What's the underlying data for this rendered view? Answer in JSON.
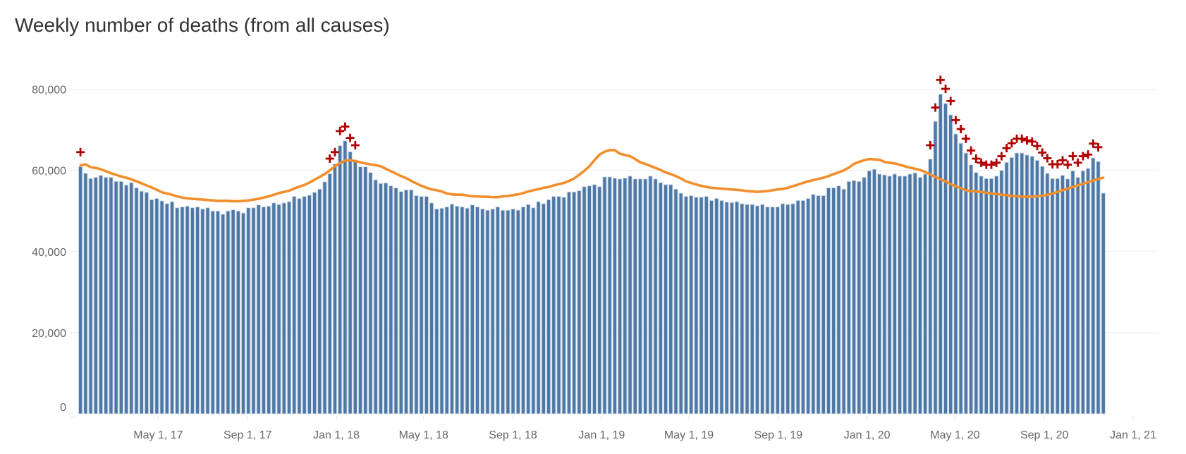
{
  "chart_data": {
    "type": "bar",
    "title": "Weekly number of deaths (from all causes)",
    "xlabel": "",
    "ylabel": "",
    "ylim": [
      0,
      85000
    ],
    "grid": "horizontal",
    "y_ticks": [
      {
        "value": 0,
        "label": "0"
      },
      {
        "value": 20000,
        "label": "20,000"
      },
      {
        "value": 40000,
        "label": "40,000"
      },
      {
        "value": 60000,
        "label": "60,000"
      },
      {
        "value": 80000,
        "label": "80,000"
      }
    ],
    "x_ticks": [
      {
        "date": "2017-05-01",
        "label": "May 1, 17"
      },
      {
        "date": "2017-09-01",
        "label": "Sep 1, 17"
      },
      {
        "date": "2018-01-01",
        "label": "Jan 1, 18"
      },
      {
        "date": "2018-05-01",
        "label": "May 1, 18"
      },
      {
        "date": "2018-09-01",
        "label": "Sep 1, 18"
      },
      {
        "date": "2019-01-01",
        "label": "Jan 1, 19"
      },
      {
        "date": "2019-05-01",
        "label": "May 1, 19"
      },
      {
        "date": "2019-09-01",
        "label": "Sep 1, 19"
      },
      {
        "date": "2020-01-01",
        "label": "Jan 1, 20"
      },
      {
        "date": "2020-05-01",
        "label": "May 1, 20"
      },
      {
        "date": "2020-09-01",
        "label": "Sep 1, 20"
      },
      {
        "date": "2021-01-01",
        "label": "Jan 1, 21"
      }
    ],
    "colors": {
      "bars": "#4e79a7",
      "bar_outline": "#d6e0ec",
      "expected_line": "#f28e2b",
      "markers": "#b00000",
      "grid": "#eeeeee"
    },
    "weeks": [
      "2017-01-14",
      "2017-01-21",
      "2017-01-28",
      "2017-02-04",
      "2017-02-11",
      "2017-02-18",
      "2017-02-25",
      "2017-03-04",
      "2017-03-11",
      "2017-03-18",
      "2017-03-25",
      "2017-04-01",
      "2017-04-08",
      "2017-04-15",
      "2017-04-22",
      "2017-04-29",
      "2017-05-06",
      "2017-05-13",
      "2017-05-20",
      "2017-05-27",
      "2017-06-03",
      "2017-06-10",
      "2017-06-17",
      "2017-06-24",
      "2017-07-01",
      "2017-07-08",
      "2017-07-15",
      "2017-07-22",
      "2017-07-29",
      "2017-08-05",
      "2017-08-12",
      "2017-08-19",
      "2017-08-26",
      "2017-09-02",
      "2017-09-09",
      "2017-09-16",
      "2017-09-23",
      "2017-09-30",
      "2017-10-07",
      "2017-10-14",
      "2017-10-21",
      "2017-10-28",
      "2017-11-04",
      "2017-11-11",
      "2017-11-18",
      "2017-11-25",
      "2017-12-02",
      "2017-12-09",
      "2017-12-16",
      "2017-12-23",
      "2017-12-30",
      "2018-01-06",
      "2018-01-13",
      "2018-01-20",
      "2018-01-27",
      "2018-02-03",
      "2018-02-10",
      "2018-02-17",
      "2018-02-24",
      "2018-03-03",
      "2018-03-10",
      "2018-03-17",
      "2018-03-24",
      "2018-03-31",
      "2018-04-07",
      "2018-04-14",
      "2018-04-21",
      "2018-04-28",
      "2018-05-05",
      "2018-05-12",
      "2018-05-19",
      "2018-05-26",
      "2018-06-02",
      "2018-06-09",
      "2018-06-16",
      "2018-06-23",
      "2018-06-30",
      "2018-07-07",
      "2018-07-14",
      "2018-07-21",
      "2018-07-28",
      "2018-08-04",
      "2018-08-11",
      "2018-08-18",
      "2018-08-25",
      "2018-09-01",
      "2018-09-08",
      "2018-09-15",
      "2018-09-22",
      "2018-09-29",
      "2018-10-06",
      "2018-10-13",
      "2018-10-20",
      "2018-10-27",
      "2018-11-03",
      "2018-11-10",
      "2018-11-17",
      "2018-11-24",
      "2018-12-01",
      "2018-12-08",
      "2018-12-15",
      "2018-12-22",
      "2018-12-29",
      "2019-01-05",
      "2019-01-12",
      "2019-01-19",
      "2019-01-26",
      "2019-02-02",
      "2019-02-09",
      "2019-02-16",
      "2019-02-23",
      "2019-03-02",
      "2019-03-09",
      "2019-03-16",
      "2019-03-23",
      "2019-03-30",
      "2019-04-06",
      "2019-04-13",
      "2019-04-20",
      "2019-04-27",
      "2019-05-04",
      "2019-05-11",
      "2019-05-18",
      "2019-05-25",
      "2019-06-01",
      "2019-06-08",
      "2019-06-15",
      "2019-06-22",
      "2019-06-29",
      "2019-07-06",
      "2019-07-13",
      "2019-07-20",
      "2019-07-27",
      "2019-08-03",
      "2019-08-10",
      "2019-08-17",
      "2019-08-24",
      "2019-08-31",
      "2019-09-07",
      "2019-09-14",
      "2019-09-21",
      "2019-09-28",
      "2019-10-05",
      "2019-10-12",
      "2019-10-19",
      "2019-10-26",
      "2019-11-02",
      "2019-11-09",
      "2019-11-16",
      "2019-11-23",
      "2019-11-30",
      "2019-12-07",
      "2019-12-14",
      "2019-12-21",
      "2019-12-28",
      "2020-01-04",
      "2020-01-11",
      "2020-01-18",
      "2020-01-25",
      "2020-02-01",
      "2020-02-08",
      "2020-02-15",
      "2020-02-22",
      "2020-02-29",
      "2020-03-07",
      "2020-03-14",
      "2020-03-21",
      "2020-03-28",
      "2020-04-04",
      "2020-04-11",
      "2020-04-18",
      "2020-04-25",
      "2020-05-02",
      "2020-05-09",
      "2020-05-16",
      "2020-05-23",
      "2020-05-30",
      "2020-06-06",
      "2020-06-13",
      "2020-06-20",
      "2020-06-27",
      "2020-07-04",
      "2020-07-11",
      "2020-07-18",
      "2020-07-25",
      "2020-08-01",
      "2020-08-08",
      "2020-08-15",
      "2020-08-22",
      "2020-08-29",
      "2020-09-05",
      "2020-09-12",
      "2020-09-19",
      "2020-09-26",
      "2020-10-03",
      "2020-10-10",
      "2020-10-17",
      "2020-10-24",
      "2020-10-31",
      "2020-11-07",
      "2020-11-14",
      "2020-11-21"
    ],
    "series": [
      {
        "type": "bar",
        "values": [
          60900,
          59300,
          58000,
          58300,
          58800,
          58300,
          58300,
          57300,
          57300,
          56400,
          57000,
          55700,
          54900,
          54600,
          52800,
          53100,
          52500,
          51800,
          52300,
          50800,
          51000,
          51200,
          50800,
          51000,
          50500,
          50800,
          50000,
          50000,
          49200,
          50000,
          50300,
          50000,
          49500,
          50800,
          50800,
          51500,
          51000,
          51200,
          52000,
          51600,
          52000,
          52300,
          53600,
          53100,
          53600,
          53900,
          54600,
          55400,
          57200,
          59200,
          61600,
          66100,
          67300,
          64600,
          62600,
          60900,
          60900,
          59500,
          57700,
          56800,
          56900,
          56200,
          55700,
          54800,
          55200,
          55200,
          53800,
          53600,
          53600,
          52000,
          50500,
          50700,
          51000,
          51700,
          51200,
          51000,
          50700,
          51500,
          51000,
          50500,
          50200,
          50500,
          51000,
          50200,
          50200,
          50500,
          50200,
          51000,
          51600,
          50800,
          52300,
          51800,
          52800,
          53600,
          53600,
          53400,
          54700,
          54700,
          55000,
          56000,
          56200,
          56500,
          56000,
          58400,
          58400,
          58100,
          57900,
          58100,
          58600,
          57900,
          57900,
          57900,
          58600,
          57900,
          57000,
          56500,
          56500,
          55400,
          54400,
          53600,
          53800,
          53400,
          53400,
          53600,
          52600,
          53100,
          52600,
          52200,
          52100,
          52300,
          51800,
          51600,
          51600,
          51300,
          51600,
          51000,
          51000,
          51000,
          51800,
          51600,
          51800,
          52600,
          52600,
          53100,
          54100,
          53800,
          53800,
          55700,
          55700,
          56200,
          55400,
          57300,
          57500,
          57300,
          58300,
          59900,
          60300,
          59100,
          58900,
          58600,
          59100,
          58600,
          58600,
          59100,
          59400,
          58300,
          59100,
          62800,
          72100,
          78800,
          76500,
          73700,
          69000,
          66700,
          64300,
          61400,
          59500,
          58600,
          58000,
          58000,
          58600,
          60000,
          62000,
          63200,
          64300,
          64300,
          63800,
          63500,
          62500,
          61000,
          59300,
          58000,
          58000,
          58800,
          57900,
          59900,
          58300,
          59900,
          60500,
          63100,
          62200,
          54400
        ]
      },
      {
        "type": "line",
        "values": [
          61200,
          61500,
          60800,
          60600,
          60300,
          59800,
          59300,
          58900,
          58500,
          58200,
          57800,
          57300,
          56800,
          56300,
          55800,
          55200,
          54600,
          54300,
          54000,
          53600,
          53300,
          53100,
          53000,
          52900,
          52800,
          52700,
          52600,
          52500,
          52500,
          52500,
          52400,
          52400,
          52500,
          52600,
          52800,
          53000,
          53300,
          53600,
          54000,
          54400,
          54700,
          55000,
          55500,
          56000,
          56400,
          57000,
          57700,
          58400,
          59100,
          60000,
          61000,
          61800,
          62400,
          62500,
          62300,
          62000,
          61700,
          61500,
          61300,
          61000,
          60400,
          59800,
          59200,
          58600,
          58100,
          57400,
          56800,
          56200,
          55700,
          55300,
          55100,
          54800,
          54300,
          54100,
          54000,
          54000,
          53800,
          53600,
          53600,
          53500,
          53500,
          53400,
          53400,
          53600,
          53700,
          53900,
          54100,
          54400,
          54800,
          55100,
          55400,
          55700,
          55900,
          56300,
          56600,
          56900,
          57400,
          58000,
          58900,
          59900,
          61000,
          62500,
          63900,
          64600,
          65000,
          65000,
          64100,
          63800,
          63500,
          62800,
          62000,
          61600,
          61100,
          60600,
          60100,
          59500,
          59100,
          58600,
          58000,
          57300,
          56900,
          56500,
          56200,
          55900,
          55700,
          55600,
          55500,
          55400,
          55300,
          55200,
          55100,
          54900,
          54800,
          54700,
          54800,
          54900,
          55100,
          55300,
          55400,
          55700,
          56100,
          56500,
          56900,
          57300,
          57600,
          57900,
          58200,
          58600,
          59100,
          59500,
          60000,
          60700,
          61600,
          62100,
          62500,
          62800,
          62700,
          62600,
          62100,
          61900,
          61700,
          61400,
          61000,
          60700,
          60400,
          60100,
          59600,
          59000,
          58400,
          57800,
          57300,
          56600,
          56100,
          55600,
          55100,
          54900,
          54800,
          54700,
          54500,
          54300,
          54200,
          54000,
          53900,
          53700,
          53600,
          53500,
          53500,
          53500,
          53600,
          53800,
          54000,
          54300,
          54700,
          55100,
          55500,
          55900,
          56300,
          56700,
          57100,
          57500,
          57900,
          58200
        ]
      }
    ],
    "markers": [
      {
        "week": "2017-01-14",
        "value": 64500
      },
      {
        "week": "2017-12-23",
        "value": 62900
      },
      {
        "week": "2017-12-30",
        "value": 64500
      },
      {
        "week": "2018-01-06",
        "value": 69700
      },
      {
        "week": "2018-01-13",
        "value": 70800
      },
      {
        "week": "2018-01-20",
        "value": 68000
      },
      {
        "week": "2018-01-27",
        "value": 66200
      },
      {
        "week": "2020-03-28",
        "value": 66200
      },
      {
        "week": "2020-04-04",
        "value": 75500
      },
      {
        "week": "2020-04-11",
        "value": 82300
      },
      {
        "week": "2020-04-18",
        "value": 80100
      },
      {
        "week": "2020-04-25",
        "value": 77100
      },
      {
        "week": "2020-05-02",
        "value": 72400
      },
      {
        "week": "2020-05-09",
        "value": 70200
      },
      {
        "week": "2020-05-16",
        "value": 67800
      },
      {
        "week": "2020-05-23",
        "value": 64900
      },
      {
        "week": "2020-05-30",
        "value": 62900
      },
      {
        "week": "2020-06-06",
        "value": 61900
      },
      {
        "week": "2020-06-13",
        "value": 61400
      },
      {
        "week": "2020-06-20",
        "value": 61400
      },
      {
        "week": "2020-06-27",
        "value": 61900
      },
      {
        "week": "2020-07-04",
        "value": 63500
      },
      {
        "week": "2020-07-11",
        "value": 65500
      },
      {
        "week": "2020-07-18",
        "value": 66700
      },
      {
        "week": "2020-07-25",
        "value": 67800
      },
      {
        "week": "2020-08-01",
        "value": 67800
      },
      {
        "week": "2020-08-08",
        "value": 67400
      },
      {
        "week": "2020-08-15",
        "value": 67100
      },
      {
        "week": "2020-08-22",
        "value": 66000
      },
      {
        "week": "2020-08-29",
        "value": 64400
      },
      {
        "week": "2020-09-05",
        "value": 63000
      },
      {
        "week": "2020-09-12",
        "value": 61500
      },
      {
        "week": "2020-09-19",
        "value": 61500
      },
      {
        "week": "2020-09-26",
        "value": 62500
      },
      {
        "week": "2020-10-03",
        "value": 61400
      },
      {
        "week": "2020-10-10",
        "value": 63500
      },
      {
        "week": "2020-10-17",
        "value": 61900
      },
      {
        "week": "2020-10-24",
        "value": 63500
      },
      {
        "week": "2020-10-31",
        "value": 63900
      },
      {
        "week": "2020-11-07",
        "value": 66600
      },
      {
        "week": "2020-11-14",
        "value": 65700
      }
    ],
    "marker_symbol": "plus-icon"
  }
}
